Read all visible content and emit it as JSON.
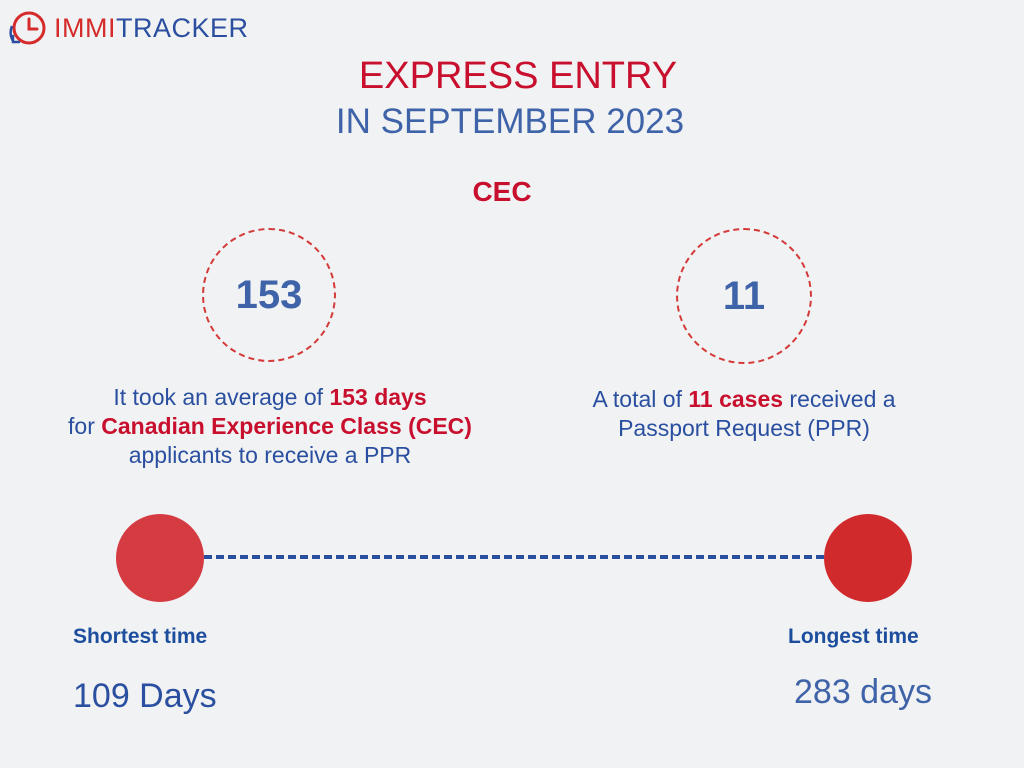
{
  "brand": {
    "part1": "IMMI",
    "part2": "TRACKER",
    "icon": "clock-refresh-icon",
    "colors": {
      "red": "#d52b2b",
      "blue": "#2a4fa0"
    }
  },
  "title": {
    "line1": "EXPRESS ENTRY",
    "line2": "IN SEPTEMBER 2023"
  },
  "program": "CEC",
  "stats": [
    {
      "value": "153",
      "caption": {
        "pre": "It took an average of ",
        "b1": "153 days",
        "mid": " for ",
        "b2": "Canadian Experience Class (CEC)",
        "post": " applicants to receive a PPR"
      }
    },
    {
      "value": "11",
      "caption": {
        "pre": "A total of ",
        "b1": "11 cases",
        "post": " received a Passport Request (PPR)"
      }
    }
  ],
  "timeline": {
    "shortest": {
      "label": "Shortest time",
      "value": "109 Days"
    },
    "longest": {
      "label": "Longest time",
      "value": "283 days"
    }
  },
  "colors": {
    "accent_red": "#c8102e",
    "accent_blue": "#2a4fa0",
    "background": "#f1f2f3"
  }
}
